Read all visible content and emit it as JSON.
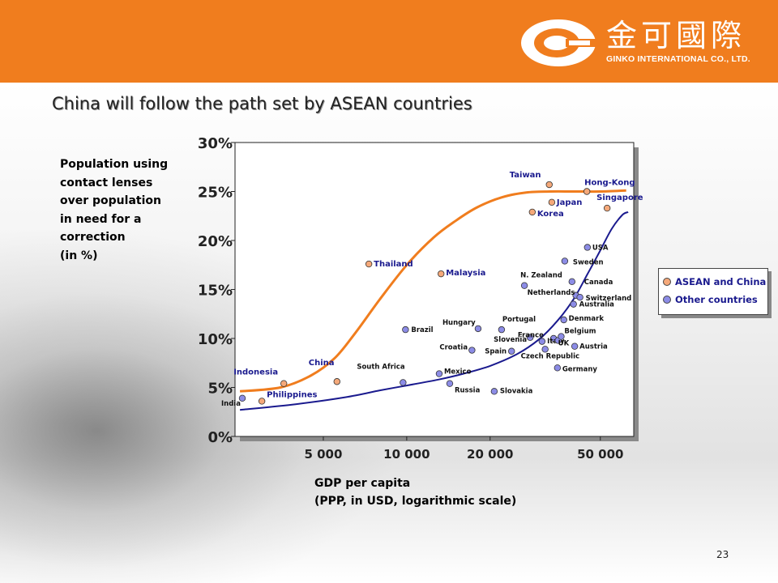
{
  "header": {
    "logo_chinese": "金可國際",
    "logo_english": "GINKO INTERNATIONAL CO., LTD."
  },
  "title": "China will follow the path set by ASEAN countries",
  "page_number": "23",
  "colors": {
    "header": "#f07d1e",
    "asean_curve": "#f07d1e",
    "other_curve": "#1a1a8e",
    "asean_point": "#f5a97a",
    "other_point": "#8c8ce6",
    "label": "#1a1a8e"
  },
  "chart_data": {
    "type": "scatter",
    "ylabel": "Population using\ncontact lenses\nover population\nin need for a\ncorrection\n(in %)",
    "xlabel_line1": "GDP per capita",
    "xlabel_line2": "(PPP, in USD, logarithmic scale)",
    "x_scale": "log",
    "xlim": [
      2400,
      66000
    ],
    "ylim": [
      0,
      30
    ],
    "yticks": [
      {
        "v": 0,
        "label": "0%"
      },
      {
        "v": 5,
        "label": "5%"
      },
      {
        "v": 10,
        "label": "10%"
      },
      {
        "v": 15,
        "label": "15%"
      },
      {
        "v": 20,
        "label": "20%"
      },
      {
        "v": 25,
        "label": "25%"
      },
      {
        "v": 30,
        "label": "30%"
      }
    ],
    "xticks": [
      {
        "v": 5000,
        "label": "5 000"
      },
      {
        "v": 10000,
        "label": "10 000"
      },
      {
        "v": 20000,
        "label": "20 000"
      },
      {
        "v": 50000,
        "label": "50 000"
      }
    ],
    "grid": false,
    "legend_position": "right",
    "series": [
      {
        "name": "ASEAN and China",
        "points": [
          {
            "label": "Indonesia",
            "x": 3600,
            "y": 5.4
          },
          {
            "label": "Philippines",
            "x": 3000,
            "y": 3.6
          },
          {
            "label": "China",
            "x": 5600,
            "y": 5.6
          },
          {
            "label": "Thailand",
            "x": 7300,
            "y": 17.6
          },
          {
            "label": "Malaysia",
            "x": 13300,
            "y": 16.6
          },
          {
            "label": "Taiwan",
            "x": 32700,
            "y": 25.7
          },
          {
            "label": "Hong-Kong",
            "x": 44700,
            "y": 25.0
          },
          {
            "label": "Japan",
            "x": 33400,
            "y": 23.9
          },
          {
            "label": "Korea",
            "x": 28400,
            "y": 22.9
          },
          {
            "label": "Singapore",
            "x": 52900,
            "y": 23.3
          }
        ]
      },
      {
        "name": "Other countries",
        "points": [
          {
            "label": "India",
            "x": 2550,
            "y": 3.9
          },
          {
            "label": "South Africa",
            "x": 9700,
            "y": 5.5
          },
          {
            "label": "Brazil",
            "x": 9900,
            "y": 10.9
          },
          {
            "label": "Mexico",
            "x": 13100,
            "y": 6.4
          },
          {
            "label": "Russia",
            "x": 14300,
            "y": 5.4
          },
          {
            "label": "Croatia",
            "x": 17200,
            "y": 8.8
          },
          {
            "label": "Hungary",
            "x": 18100,
            "y": 11.0
          },
          {
            "label": "Slovakia",
            "x": 20700,
            "y": 4.6
          },
          {
            "label": "Portugal",
            "x": 22000,
            "y": 10.9
          },
          {
            "label": "Spain",
            "x": 23900,
            "y": 8.7
          },
          {
            "label": "Slovenia",
            "x": 27900,
            "y": 10.1
          },
          {
            "label": "France",
            "x": 30800,
            "y": 9.7
          },
          {
            "label": "Italy",
            "x": 33900,
            "y": 10.0
          },
          {
            "label": "UK",
            "x": 35200,
            "y": 9.8
          },
          {
            "label": "Czech Republic",
            "x": 31600,
            "y": 8.9
          },
          {
            "label": "Germany",
            "x": 35000,
            "y": 7.0
          },
          {
            "label": "Belgium",
            "x": 36100,
            "y": 10.2
          },
          {
            "label": "Denmark",
            "x": 36900,
            "y": 11.9
          },
          {
            "label": "Austria",
            "x": 40400,
            "y": 9.2
          },
          {
            "label": "N. Zealand",
            "x": 26600,
            "y": 15.4
          },
          {
            "label": "Sweden",
            "x": 37200,
            "y": 17.9
          },
          {
            "label": "Canada",
            "x": 39500,
            "y": 15.8
          },
          {
            "label": "Netherlands",
            "x": 40800,
            "y": 14.4
          },
          {
            "label": "Switzerland",
            "x": 42200,
            "y": 14.2
          },
          {
            "label": "Australia",
            "x": 40000,
            "y": 13.5
          },
          {
            "label": "USA",
            "x": 44900,
            "y": 19.3
          }
        ]
      }
    ],
    "trend_lines": {
      "asean": [
        [
          2500,
          4.6
        ],
        [
          3500,
          5.0
        ],
        [
          4500,
          6.2
        ],
        [
          5500,
          8.0
        ],
        [
          6500,
          10.5
        ],
        [
          8000,
          14.0
        ],
        [
          10000,
          17.5
        ],
        [
          12500,
          20.3
        ],
        [
          15000,
          22.0
        ],
        [
          18000,
          23.4
        ],
        [
          22000,
          24.4
        ],
        [
          27000,
          24.9
        ],
        [
          33000,
          25.0
        ],
        [
          40000,
          25.0
        ],
        [
          50000,
          25.0
        ],
        [
          62000,
          25.1
        ]
      ],
      "other": [
        [
          2500,
          2.7
        ],
        [
          4000,
          3.3
        ],
        [
          6000,
          4.0
        ],
        [
          8000,
          4.7
        ],
        [
          10000,
          5.2
        ],
        [
          13000,
          5.8
        ],
        [
          16000,
          6.4
        ],
        [
          20000,
          7.2
        ],
        [
          25000,
          8.4
        ],
        [
          30000,
          9.9
        ],
        [
          35000,
          11.8
        ],
        [
          40000,
          14.0
        ],
        [
          45000,
          16.6
        ],
        [
          50000,
          19.0
        ],
        [
          55000,
          21.2
        ],
        [
          60000,
          22.6
        ],
        [
          63000,
          22.9
        ]
      ]
    }
  }
}
